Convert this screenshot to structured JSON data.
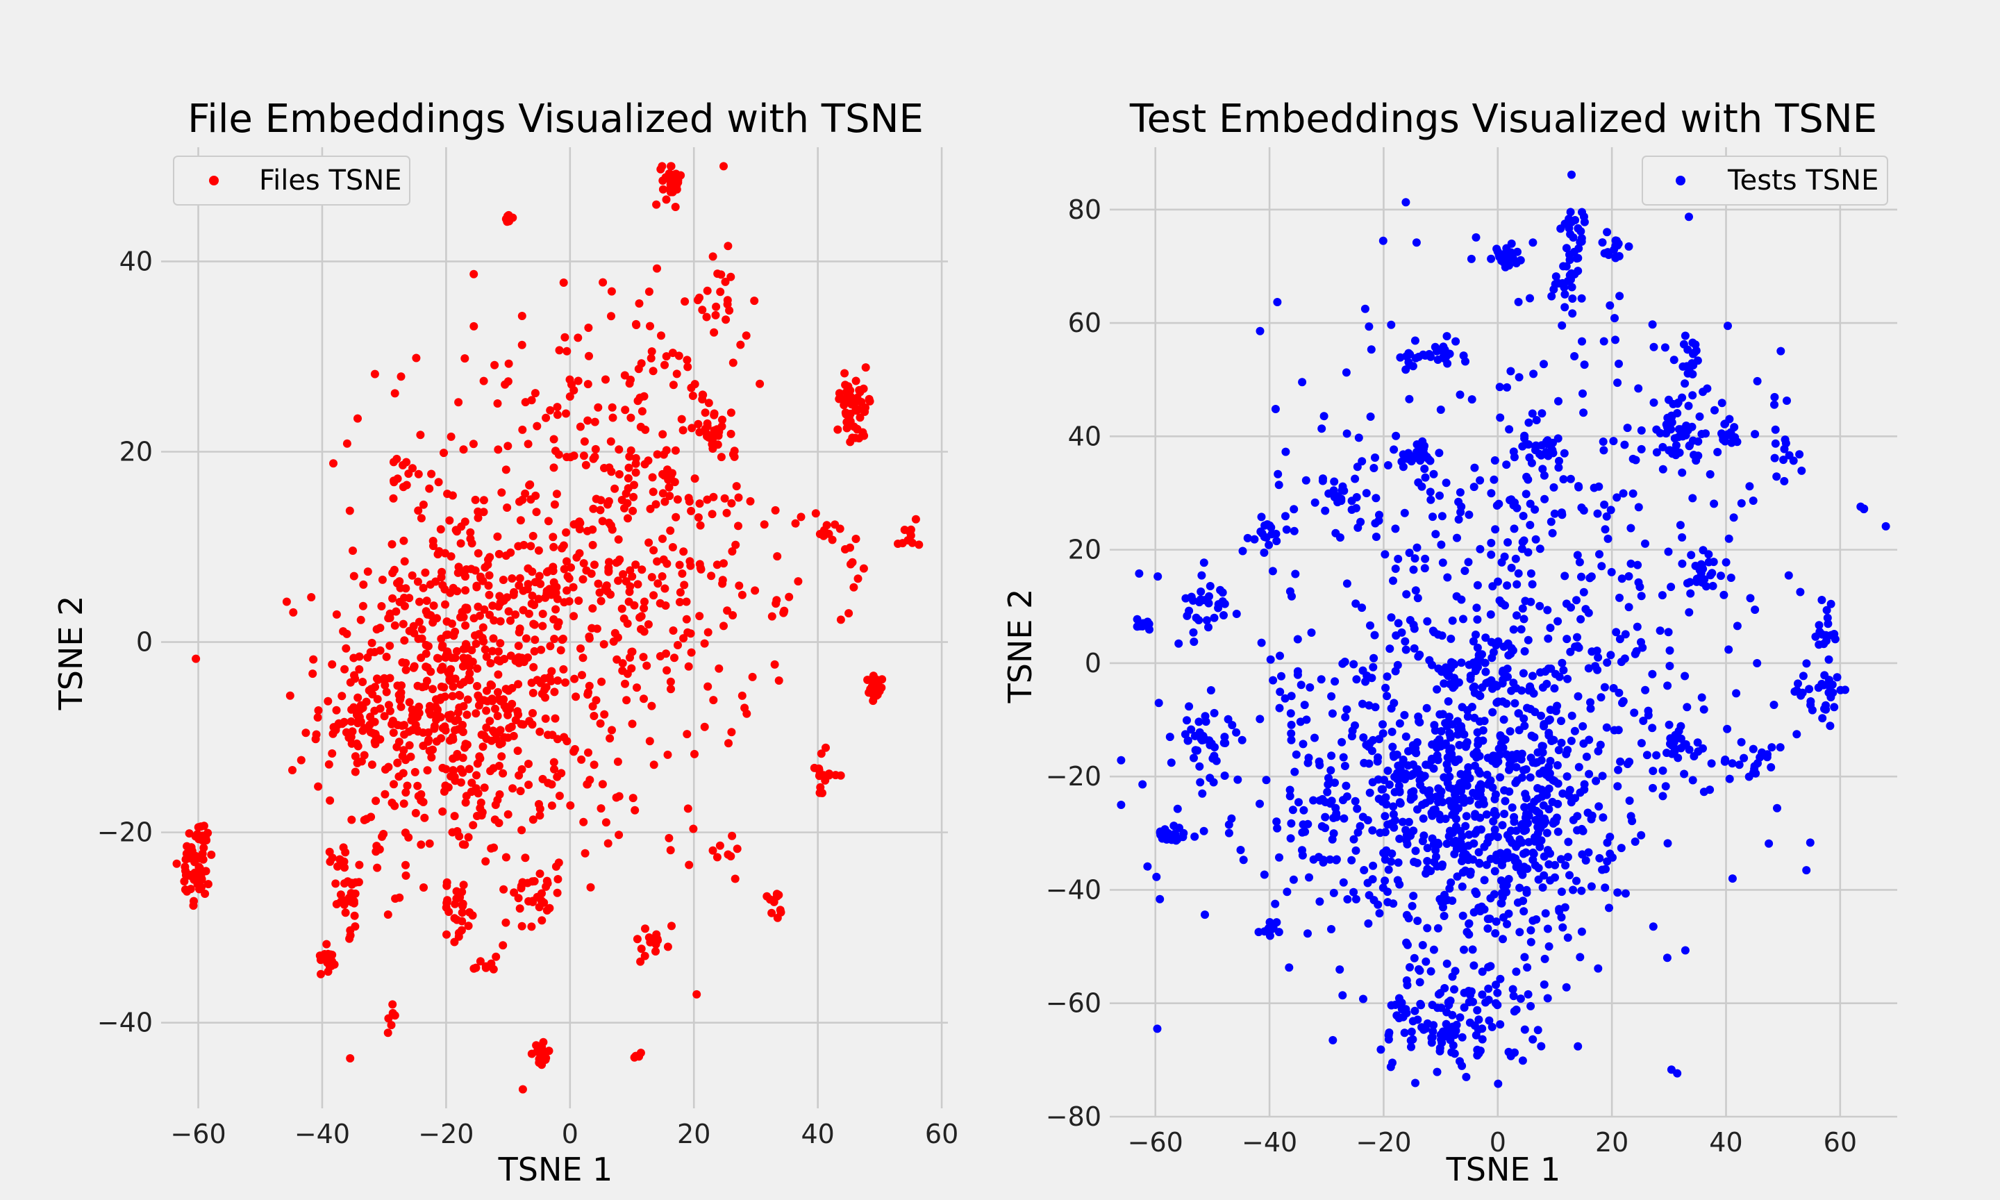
{
  "chart_data": [
    {
      "type": "scatter",
      "title": "File Embeddings Visualized with TSNE",
      "xlabel": "TSNE 1",
      "ylabel": "TSNE 2",
      "xlim": [
        -66,
        61
      ],
      "ylim": [
        -49,
        52
      ],
      "xticks": [
        -60,
        -40,
        -20,
        0,
        20,
        40,
        60
      ],
      "yticks": [
        -40,
        -20,
        0,
        20,
        40
      ],
      "grid": true,
      "legend_position": "top-left",
      "color": "#ff0000",
      "series": [
        {
          "name": "Files TSNE",
          "color": "#ff0000",
          "clusters": [
            {
              "cx": -20,
              "cy": -6,
              "sx": 10,
              "sy": 9,
              "n": 520
            },
            {
              "cx": 0,
              "cy": 5,
              "sx": 15,
              "sy": 14,
              "n": 420
            },
            {
              "cx": 12,
              "cy": 15,
              "sx": 11,
              "sy": 11,
              "n": 160
            },
            {
              "cx": -60,
              "cy": -23,
              "sx": 1.3,
              "sy": 2.2,
              "n": 55
            },
            {
              "cx": -39,
              "cy": -33,
              "sx": 0.6,
              "sy": 0.8,
              "n": 20
            },
            {
              "cx": -36,
              "cy": -27,
              "sx": 1.4,
              "sy": 1.8,
              "n": 25
            },
            {
              "cx": -37,
              "cy": -23,
              "sx": 1.0,
              "sy": 1.2,
              "n": 10
            },
            {
              "cx": -34,
              "cy": -8,
              "sx": 1.5,
              "sy": 1.3,
              "n": 25
            },
            {
              "cx": -27,
              "cy": 17,
              "sx": 0.8,
              "sy": 1.5,
              "n": 12
            },
            {
              "cx": 16.5,
              "cy": 48.5,
              "sx": 0.8,
              "sy": 1.2,
              "n": 30
            },
            {
              "cx": 46,
              "cy": 25.5,
              "sx": 1.6,
              "sy": 1.3,
              "n": 40
            },
            {
              "cx": 49,
              "cy": -5,
              "sx": 0.7,
              "sy": 0.8,
              "n": 18
            },
            {
              "cx": 41,
              "cy": -14,
              "sx": 1.2,
              "sy": 1.2,
              "n": 16
            },
            {
              "cx": 54.5,
              "cy": 11.5,
              "sx": 0.8,
              "sy": 1.0,
              "n": 10
            },
            {
              "cx": 23,
              "cy": 22,
              "sx": 1.5,
              "sy": 0.8,
              "n": 25
            },
            {
              "cx": -18,
              "cy": -28,
              "sx": 1.5,
              "sy": 1.5,
              "n": 25
            },
            {
              "cx": -5,
              "cy": -43.5,
              "sx": 0.9,
              "sy": 0.8,
              "n": 16
            },
            {
              "cx": -5,
              "cy": -26,
              "sx": 2.0,
              "sy": 2.2,
              "n": 30
            },
            {
              "cx": 33,
              "cy": -27,
              "sx": 0.9,
              "sy": 1.5,
              "n": 10
            },
            {
              "cx": 25,
              "cy": -22,
              "sx": 0.8,
              "sy": 1.0,
              "n": 8
            },
            {
              "cx": -10,
              "cy": 44.5,
              "sx": 0.6,
              "sy": 0.5,
              "n": 8
            },
            {
              "cx": 24,
              "cy": 35,
              "sx": 2.5,
              "sy": 2.5,
              "n": 25
            },
            {
              "cx": 46,
              "cy": 9,
              "sx": 0.9,
              "sy": 1.5,
              "n": 8
            },
            {
              "cx": 47,
              "cy": 22.5,
              "sx": 0.9,
              "sy": 1.0,
              "n": 8
            },
            {
              "cx": 41,
              "cy": 12,
              "sx": 0.9,
              "sy": 1.1,
              "n": 10
            },
            {
              "cx": -14,
              "cy": -34,
              "sx": 1.2,
              "sy": 0.7,
              "n": 8
            },
            {
              "cx": 11,
              "cy": -43.5,
              "sx": 0.4,
              "sy": 0.4,
              "n": 4
            },
            {
              "cx": -29,
              "cy": -40,
              "sx": 0.6,
              "sy": 0.8,
              "n": 6
            },
            {
              "cx": 14,
              "cy": -32,
              "sx": 2.5,
              "sy": 1.2,
              "n": 14
            },
            {
              "cx": 34,
              "cy": 3,
              "sx": 0.9,
              "sy": 0.7,
              "n": 6
            }
          ]
        }
      ]
    },
    {
      "type": "scatter",
      "title": "Test Embeddings Visualized with TSNE",
      "xlabel": "TSNE 1",
      "ylabel": "TSNE 2",
      "xlim": [
        -68,
        70
      ],
      "ylim": [
        -80,
        91
      ],
      "xticks": [
        -60,
        -40,
        -20,
        0,
        20,
        40,
        60
      ],
      "yticks": [
        -80,
        -60,
        -40,
        -20,
        0,
        20,
        40,
        60,
        80
      ],
      "grid": true,
      "legend_position": "top-right",
      "color": "#0000ff",
      "series": [
        {
          "name": "Tests TSNE",
          "color": "#0000ff",
          "clusters": [
            {
              "cx": -2,
              "cy": -25,
              "sx": 12,
              "sy": 14,
              "n": 650
            },
            {
              "cx": 5,
              "cy": 12,
              "sx": 22,
              "sy": 26,
              "n": 550
            },
            {
              "cx": -30,
              "cy": -20,
              "sx": 15,
              "sy": 15,
              "n": 180
            },
            {
              "cx": -8,
              "cy": -63,
              "sx": 8,
              "sy": 5,
              "n": 110
            },
            {
              "cx": -57,
              "cy": -30,
              "sx": 1.2,
              "sy": 1.0,
              "n": 25
            },
            {
              "cx": -52,
              "cy": -13,
              "sx": 2.5,
              "sy": 2.5,
              "n": 30
            },
            {
              "cx": -51,
              "cy": 10,
              "sx": 2.5,
              "sy": 3.5,
              "n": 30
            },
            {
              "cx": -62,
              "cy": 7,
              "sx": 0.8,
              "sy": 1.2,
              "n": 10
            },
            {
              "cx": -13,
              "cy": 54,
              "sx": 2.5,
              "sy": 1.5,
              "n": 25
            },
            {
              "cx": -14,
              "cy": 37,
              "sx": 2.0,
              "sy": 1.5,
              "n": 25
            },
            {
              "cx": 1,
              "cy": 72,
              "sx": 1.3,
              "sy": 1.2,
              "n": 20
            },
            {
              "cx": 13,
              "cy": 77,
              "sx": 1.2,
              "sy": 4.0,
              "n": 25
            },
            {
              "cx": 20,
              "cy": 73,
              "sx": 1.2,
              "sy": 1.0,
              "n": 14
            },
            {
              "cx": 34,
              "cy": 55,
              "sx": 1.2,
              "sy": 3.0,
              "n": 18
            },
            {
              "cx": 32,
              "cy": 42,
              "sx": 2.0,
              "sy": 3.0,
              "n": 40
            },
            {
              "cx": 40,
              "cy": 40,
              "sx": 1.2,
              "sy": 1.2,
              "n": 14
            },
            {
              "cx": 8,
              "cy": 37,
              "sx": 2.0,
              "sy": 3.5,
              "n": 30
            },
            {
              "cx": 12,
              "cy": 65,
              "sx": 1.5,
              "sy": 3.0,
              "n": 20
            },
            {
              "cx": 57,
              "cy": -5,
              "sx": 2.5,
              "sy": 3.0,
              "n": 30
            },
            {
              "cx": 58,
              "cy": 6,
              "sx": 1.0,
              "sy": 2.5,
              "n": 15
            },
            {
              "cx": -40,
              "cy": -47,
              "sx": 1.0,
              "sy": 1.0,
              "n": 10
            },
            {
              "cx": -29,
              "cy": 30,
              "sx": 2.5,
              "sy": 2.0,
              "n": 25
            },
            {
              "cx": -40,
              "cy": 23,
              "sx": 2.0,
              "sy": 1.5,
              "n": 20
            },
            {
              "cx": 45,
              "cy": -17,
              "sx": 3.0,
              "sy": 2.0,
              "n": 20
            },
            {
              "cx": 32,
              "cy": -14,
              "sx": 2.0,
              "sy": 2.0,
              "n": 20
            },
            {
              "cx": 36,
              "cy": 15,
              "sx": 2.0,
              "sy": 2.5,
              "n": 25
            },
            {
              "cx": 50,
              "cy": 38,
              "sx": 2.0,
              "sy": 3.0,
              "n": 12
            },
            {
              "cx": -9,
              "cy": -66,
              "sx": 1.5,
              "sy": 1.0,
              "n": 20
            },
            {
              "cx": 64,
              "cy": 27,
              "sx": 0.3,
              "sy": 0.5,
              "n": 3
            },
            {
              "cx": -17,
              "cy": -20,
              "sx": 1.5,
              "sy": 1.2,
              "n": 12
            }
          ]
        }
      ]
    }
  ]
}
